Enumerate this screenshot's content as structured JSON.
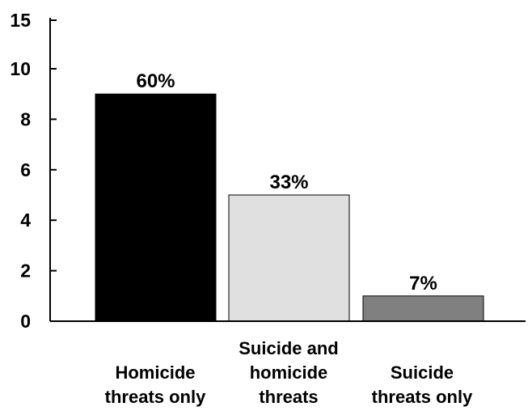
{
  "chart_data": {
    "type": "bar",
    "categories": [
      [
        "Homicide",
        "threats only"
      ],
      [
        "Suicide and",
        "homicide",
        "threats"
      ],
      [
        "Suicide",
        "threats only"
      ]
    ],
    "values": [
      9,
      5,
      1
    ],
    "data_labels": [
      "60%",
      "33%",
      "7%"
    ],
    "bar_colors": [
      "#000000",
      "#e0e0e0",
      "#808080"
    ],
    "y_ticks": [
      "0",
      "2",
      "4",
      "6",
      "8",
      "10",
      "15"
    ],
    "y_tick_values": [
      0,
      2,
      4,
      6,
      8,
      10,
      15
    ],
    "y_axis_break": true,
    "grid": false,
    "legend": "none",
    "title": "",
    "xlabel": "",
    "ylabel": ""
  }
}
